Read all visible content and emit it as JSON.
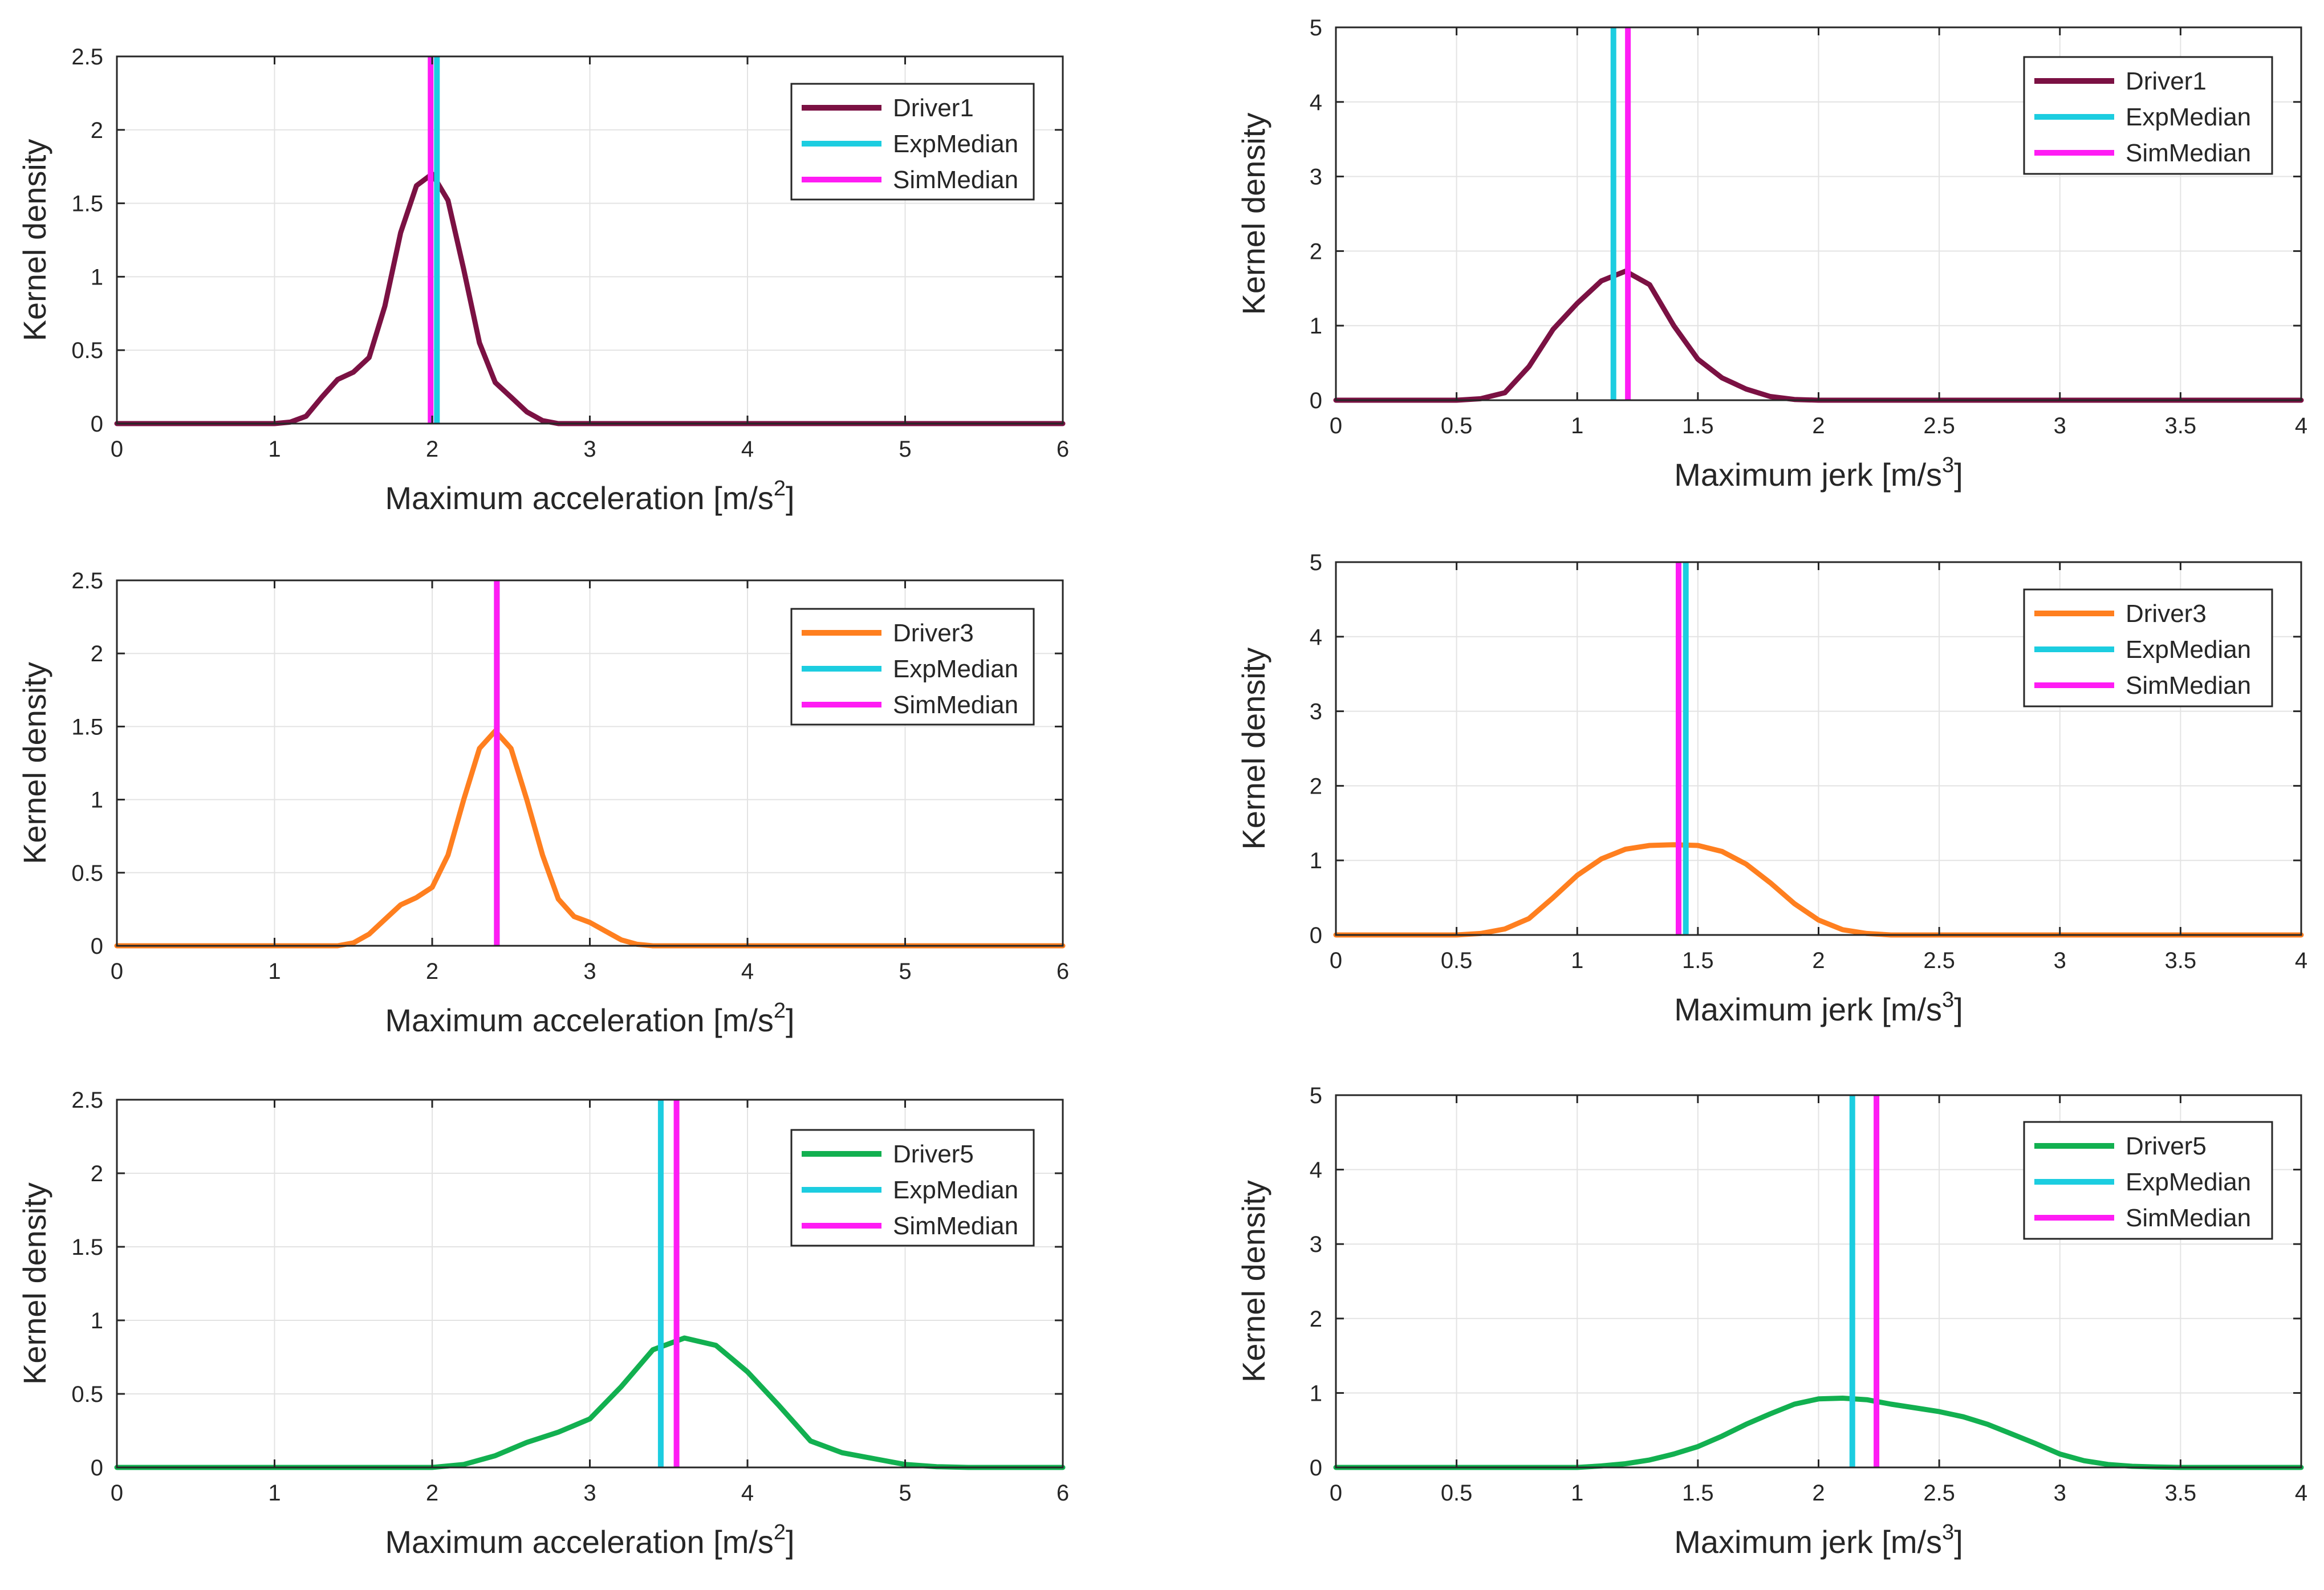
{
  "chart_data": [
    {
      "type": "line",
      "panel": "Driver1 acceleration",
      "xlabel": "Maximum acceleration [m/s",
      "xlabel_sup": "2",
      "xlabel_end": "]",
      "ylabel": "Kernel density",
      "xlim": [
        0,
        6
      ],
      "ylim": [
        0,
        2.5
      ],
      "xticks": [
        "0",
        "1",
        "2",
        "3",
        "4",
        "5",
        "6"
      ],
      "yticks": [
        "0",
        "0.5",
        "1",
        "1.5",
        "2",
        "2.5"
      ],
      "grid": true,
      "legend_position": "top-right",
      "series": [
        {
          "name": "Driver1",
          "color": "#7b1143",
          "x": [
            0,
            1.0,
            1.1,
            1.2,
            1.3,
            1.4,
            1.5,
            1.6,
            1.7,
            1.8,
            1.9,
            2.0,
            2.1,
            2.2,
            2.3,
            2.4,
            2.5,
            2.6,
            2.7,
            2.8,
            3.0,
            6
          ],
          "y": [
            0,
            0,
            0.01,
            0.05,
            0.18,
            0.3,
            0.35,
            0.45,
            0.8,
            1.3,
            1.62,
            1.7,
            1.52,
            1.05,
            0.55,
            0.28,
            0.18,
            0.08,
            0.02,
            0.0,
            0,
            0
          ]
        }
      ],
      "medians": [
        {
          "name": "ExpMedian",
          "color": "#1ccde0",
          "x": 2.03
        },
        {
          "name": "SimMedian",
          "color": "#ff1cf4",
          "x": 1.99
        }
      ]
    },
    {
      "type": "line",
      "panel": "Driver1 jerk",
      "xlabel": "Maximum jerk [m/s",
      "xlabel_sup": "3",
      "xlabel_end": "]",
      "ylabel": "Kernel density",
      "xlim": [
        0,
        4
      ],
      "ylim": [
        0,
        5
      ],
      "xticks": [
        "0",
        "0.5",
        "1",
        "1.5",
        "2",
        "2.5",
        "3",
        "3.5",
        "4"
      ],
      "yticks": [
        "0",
        "1",
        "2",
        "3",
        "4",
        "5"
      ],
      "grid": true,
      "legend_position": "top-right",
      "series": [
        {
          "name": "Driver1",
          "color": "#7b1143",
          "x": [
            0,
            0.5,
            0.6,
            0.7,
            0.8,
            0.9,
            1.0,
            1.1,
            1.2,
            1.3,
            1.4,
            1.5,
            1.6,
            1.7,
            1.8,
            1.9,
            2.0,
            4
          ],
          "y": [
            0,
            0,
            0.02,
            0.1,
            0.45,
            0.95,
            1.3,
            1.6,
            1.73,
            1.55,
            1.0,
            0.55,
            0.3,
            0.15,
            0.05,
            0.01,
            0,
            0
          ]
        }
      ],
      "medians": [
        {
          "name": "ExpMedian",
          "color": "#1ccde0",
          "x": 1.15
        },
        {
          "name": "SimMedian",
          "color": "#ff1cf4",
          "x": 1.21
        }
      ]
    },
    {
      "type": "line",
      "panel": "Driver3 acceleration",
      "xlabel": "Maximum acceleration [m/s",
      "xlabel_sup": "2",
      "xlabel_end": "]",
      "ylabel": "Kernel density",
      "xlim": [
        0,
        6
      ],
      "ylim": [
        0,
        2.5
      ],
      "xticks": [
        "0",
        "1",
        "2",
        "3",
        "4",
        "5",
        "6"
      ],
      "yticks": [
        "0",
        "0.5",
        "1",
        "1.5",
        "2",
        "2.5"
      ],
      "grid": true,
      "legend_position": "top-right",
      "series": [
        {
          "name": "Driver3",
          "color": "#ff7f1f",
          "x": [
            0,
            1.4,
            1.5,
            1.6,
            1.7,
            1.8,
            1.9,
            2.0,
            2.1,
            2.2,
            2.3,
            2.4,
            2.5,
            2.6,
            2.7,
            2.8,
            2.9,
            3.0,
            3.1,
            3.2,
            3.3,
            3.4,
            6
          ],
          "y": [
            0,
            0,
            0.02,
            0.08,
            0.18,
            0.28,
            0.33,
            0.4,
            0.62,
            1.0,
            1.35,
            1.47,
            1.35,
            1.0,
            0.62,
            0.32,
            0.2,
            0.16,
            0.1,
            0.04,
            0.01,
            0,
            0
          ]
        }
      ],
      "medians": [
        {
          "name": "ExpMedian",
          "color": "#1ccde0",
          "x": 2.41
        },
        {
          "name": "SimMedian",
          "color": "#ff1cf4",
          "x": 2.41
        }
      ]
    },
    {
      "type": "line",
      "panel": "Driver3 jerk",
      "xlabel": "Maximum jerk [m/s",
      "xlabel_sup": "3",
      "xlabel_end": "]",
      "ylabel": "Kernel density",
      "xlim": [
        0,
        4
      ],
      "ylim": [
        0,
        5
      ],
      "xticks": [
        "0",
        "0.5",
        "1",
        "1.5",
        "2",
        "2.5",
        "3",
        "3.5",
        "4"
      ],
      "yticks": [
        "0",
        "1",
        "2",
        "3",
        "4",
        "5"
      ],
      "grid": true,
      "legend_position": "top-right",
      "series": [
        {
          "name": "Driver3",
          "color": "#ff7f1f",
          "x": [
            0,
            0.5,
            0.6,
            0.7,
            0.8,
            0.9,
            1.0,
            1.1,
            1.2,
            1.3,
            1.4,
            1.5,
            1.6,
            1.7,
            1.8,
            1.9,
            2.0,
            2.1,
            2.2,
            2.3,
            4
          ],
          "y": [
            0,
            0,
            0.02,
            0.08,
            0.22,
            0.5,
            0.8,
            1.02,
            1.15,
            1.2,
            1.21,
            1.2,
            1.12,
            0.95,
            0.7,
            0.42,
            0.2,
            0.07,
            0.02,
            0,
            0
          ]
        }
      ],
      "medians": [
        {
          "name": "ExpMedian",
          "color": "#1ccde0",
          "x": 1.45
        },
        {
          "name": "SimMedian",
          "color": "#ff1cf4",
          "x": 1.42
        }
      ]
    },
    {
      "type": "line",
      "panel": "Driver5 acceleration",
      "xlabel": "Maximum acceleration [m/s",
      "xlabel_sup": "2",
      "xlabel_end": "]",
      "ylabel": "Kernel density",
      "xlim": [
        0,
        6
      ],
      "ylim": [
        0,
        2.5
      ],
      "xticks": [
        "0",
        "1",
        "2",
        "3",
        "4",
        "5",
        "6"
      ],
      "yticks": [
        "0",
        "0.5",
        "1",
        "1.5",
        "2",
        "2.5"
      ],
      "grid": true,
      "legend_position": "top-right",
      "series": [
        {
          "name": "Driver5",
          "color": "#12b050",
          "x": [
            0,
            2.0,
            2.2,
            2.4,
            2.6,
            2.8,
            3.0,
            3.2,
            3.4,
            3.6,
            3.8,
            4.0,
            4.2,
            4.4,
            4.6,
            4.8,
            5.0,
            5.2,
            5.4,
            6
          ],
          "y": [
            0,
            0,
            0.02,
            0.08,
            0.17,
            0.24,
            0.33,
            0.55,
            0.8,
            0.88,
            0.83,
            0.65,
            0.42,
            0.18,
            0.1,
            0.06,
            0.02,
            0.005,
            0,
            0
          ]
        }
      ],
      "medians": [
        {
          "name": "ExpMedian",
          "color": "#1ccde0",
          "x": 3.45
        },
        {
          "name": "SimMedian",
          "color": "#ff1cf4",
          "x": 3.55
        }
      ]
    },
    {
      "type": "line",
      "panel": "Driver5 jerk",
      "xlabel": "Maximum jerk [m/s",
      "xlabel_sup": "3",
      "xlabel_end": "]",
      "ylabel": "Kernel density",
      "xlim": [
        0,
        4
      ],
      "ylim": [
        0,
        5
      ],
      "xticks": [
        "0",
        "0.5",
        "1",
        "1.5",
        "2",
        "2.5",
        "3",
        "3.5",
        "4"
      ],
      "yticks": [
        "0",
        "1",
        "2",
        "3",
        "4",
        "5"
      ],
      "grid": true,
      "legend_position": "top-right",
      "series": [
        {
          "name": "Driver5",
          "color": "#12b050",
          "x": [
            0,
            1.0,
            1.1,
            1.2,
            1.3,
            1.4,
            1.5,
            1.6,
            1.7,
            1.8,
            1.9,
            2.0,
            2.1,
            2.2,
            2.3,
            2.4,
            2.5,
            2.6,
            2.7,
            2.8,
            2.9,
            3.0,
            3.1,
            3.2,
            3.3,
            3.4,
            3.5,
            4
          ],
          "y": [
            0,
            0,
            0.02,
            0.05,
            0.1,
            0.18,
            0.28,
            0.42,
            0.58,
            0.72,
            0.85,
            0.92,
            0.93,
            0.91,
            0.85,
            0.8,
            0.75,
            0.68,
            0.58,
            0.45,
            0.32,
            0.18,
            0.09,
            0.04,
            0.015,
            0.005,
            0,
            0
          ]
        }
      ],
      "medians": [
        {
          "name": "ExpMedian",
          "color": "#1ccde0",
          "x": 2.14
        },
        {
          "name": "SimMedian",
          "color": "#ff1cf4",
          "x": 2.24
        }
      ]
    }
  ]
}
